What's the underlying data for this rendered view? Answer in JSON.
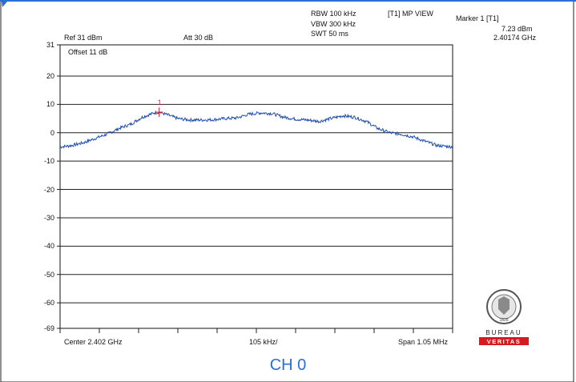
{
  "header": {
    "rbw": "RBW 100 kHz",
    "vbw": "VBW 300 kHz",
    "swt": "SWT 50 ms",
    "trace_mode": "[T1] MP VIEW",
    "marker_title": "Marker 1 [T1]",
    "marker_level": "7.23 dBm",
    "marker_freq": "2.40174 GHz",
    "ref": "Ref 31 dBm",
    "att": "Att  30 dB",
    "offset": "Offset 11 dB"
  },
  "footer": {
    "center": "Center 2.402 GHz",
    "div": "105 kHz/",
    "span": "Span 1.05 MHz",
    "caption": "CH 0"
  },
  "logo": {
    "line1": "BUREAU",
    "line2": "VERITAS",
    "year": "1828",
    "brand_color": "#d71920"
  },
  "chart_data": {
    "type": "line",
    "title": "",
    "xlabel": "",
    "ylabel": "",
    "x_unit": "MHz",
    "xlim": [
      2.401475,
      2.402525
    ],
    "ylim": [
      -69,
      31
    ],
    "yticks": [
      31,
      20,
      10,
      0,
      -10,
      -20,
      -30,
      -40,
      -50,
      -60,
      -69
    ],
    "ytick_labels": [
      "31",
      "20",
      "10",
      "0",
      "-10",
      "-20",
      "-30",
      "-40",
      "-50",
      "-60",
      "-69"
    ],
    "grid": true,
    "trace_color": "#1f4fb3",
    "series": [
      {
        "x": [
          2.401475,
          2.401506,
          2.401538,
          2.401569,
          2.401601,
          2.401632,
          2.401664,
          2.401695,
          2.401727,
          2.40174,
          2.401758,
          2.40179,
          2.401821,
          2.401853,
          2.401884,
          2.401916,
          2.401947,
          2.401979,
          2.40201,
          2.402042,
          2.402073,
          2.402105,
          2.402136,
          2.402168,
          2.402199,
          2.402231,
          2.402262,
          2.402294,
          2.402325,
          2.402357,
          2.402388,
          2.40242,
          2.402451,
          2.402483,
          2.402525
        ],
        "y": [
          -5.0,
          -4.5,
          -3.5,
          -2.0,
          -0.5,
          1.5,
          3.0,
          5.5,
          7.0,
          7.23,
          6.5,
          5.0,
          4.5,
          4.5,
          4.6,
          5.0,
          5.2,
          6.5,
          7.0,
          6.8,
          5.5,
          4.8,
          4.5,
          4.0,
          5.0,
          6.0,
          5.5,
          4.0,
          1.5,
          0.0,
          -0.5,
          -1.5,
          -3.0,
          -4.5,
          -5.0
        ]
      }
    ],
    "marker": {
      "label": "1",
      "x": 2.40174,
      "y": 7.23
    }
  }
}
